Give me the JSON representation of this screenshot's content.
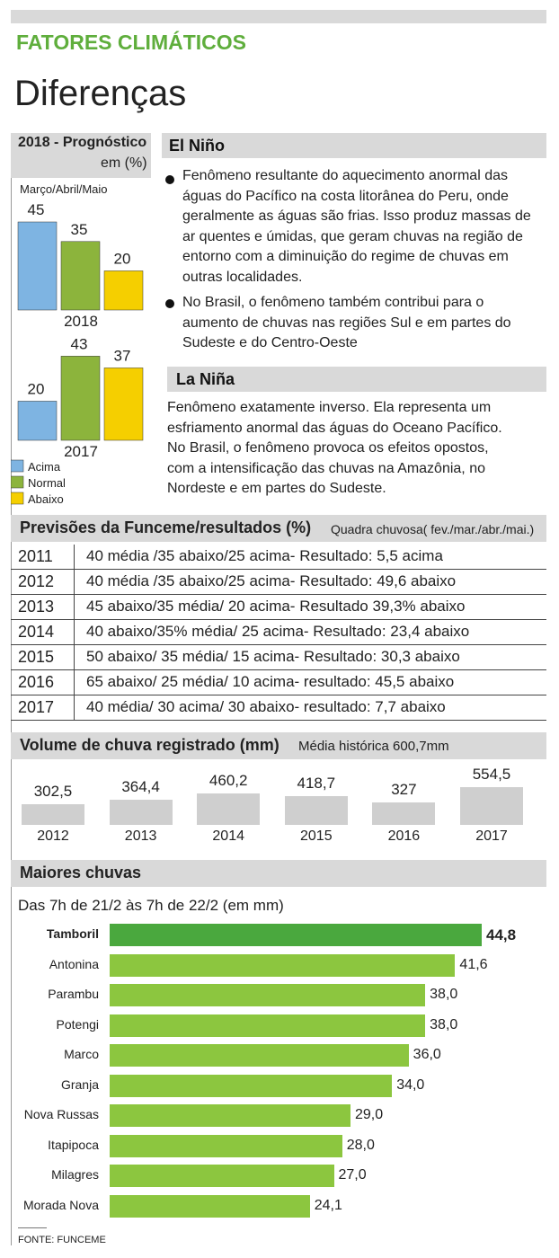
{
  "header": {
    "kicker": "FATORES CLIMÁTICOS",
    "title": "Diferenças"
  },
  "prognostico": {
    "title": "2018 - Prognóstico",
    "unit": "em (%)",
    "period": "Março/Abril/Maio"
  },
  "el_nino": {
    "title": "El Niño",
    "bullet1": [
      "Fenômeno resultante do aquecimento anormal das",
      "águas do Pacífico na costa litorânea do Peru, onde",
      "geralmente as águas são frias. Isso produz massas de",
      "ar quentes e úmidas, que geram chuvas na região de",
      "entorno com a diminuição do regime de chuvas em",
      "outras localidades."
    ],
    "bullet2": [
      "No Brasil, o fenômeno também contribui para o",
      "aumento de chuvas nas regiões Sul e em partes do",
      "Sudeste e do Centro-Oeste"
    ]
  },
  "la_nina": {
    "title": "La Niña",
    "lines": [
      "Fenômeno exatamente inverso. Ela representa um",
      "esfriamento anormal das águas do Oceano Pacífico.",
      "No Brasil, o fenômeno provoca os efeitos opostos,",
      "com a intensificação das chuvas na Amazônia, no",
      "Nordeste e em partes do Sudeste."
    ]
  },
  "previsoes": {
    "title": "Previsões da Funceme/resultados (%)",
    "subtitle": "Quadra chuvosa( fev./mar./abr./mai.)",
    "rows": [
      {
        "year": "2011",
        "text": "40 média /35  abaixo/25 acima- Resultado: 5,5 acima"
      },
      {
        "year": "2012",
        "text": "40 média /35  abaixo/25 acima- Resultado: 49,6 abaixo"
      },
      {
        "year": "2013",
        "text": "45 abaixo/35 média/ 20 acima- Resultado 39,3% abaixo"
      },
      {
        "year": "2014",
        "text": "40 abaixo/35% média/ 25 acima- Resultado: 23,4 abaixo"
      },
      {
        "year": "2015",
        "text": "50 abaixo/ 35 média/ 15 acima- Resultado: 30,3 abaixo"
      },
      {
        "year": "2016",
        "text": "65 abaixo/ 25 média/ 10 acima- resultado: 45,5 abaixo"
      },
      {
        "year": "2017",
        "text": "40 média/ 30 acima/ 30 abaixo- resultado: 7,7 abaixo"
      }
    ]
  },
  "volume": {
    "title": "Volume de chuva registrado (mm)",
    "subtitle": "Média histórica 600,7mm"
  },
  "maiores": {
    "title": "Maiores chuvas",
    "subtitle": "Das 7h de 21/2 às 7h de 22/2 (em mm)"
  },
  "source": "FONTE: FUNCEME",
  "colors": {
    "acima": "#7eb4e2",
    "normal": "#8cb43c",
    "abaixo": "#f5cf00",
    "rain_top": "#4aa83e",
    "rain": "#8cc63f",
    "volume_bar": "#cfcfcf",
    "header_bar": "#d9d9d9",
    "kicker": "#5fae3c"
  },
  "chart_data": [
    {
      "type": "bar",
      "title": "2018 - Prognóstico",
      "categories": [
        "2018",
        "2017"
      ],
      "legend": [
        "Acima",
        "Normal",
        "Abaixo"
      ],
      "series": [
        {
          "name": "Acima",
          "values": [
            45,
            20
          ]
        },
        {
          "name": "Normal",
          "values": [
            35,
            43
          ]
        },
        {
          "name": "Abaixo",
          "values": [
            20,
            37
          ]
        }
      ],
      "ylim": [
        0,
        45
      ]
    },
    {
      "type": "bar",
      "title": "Volume de chuva registrado (mm)",
      "categories": [
        "2012",
        "2013",
        "2014",
        "2015",
        "2016",
        "2017"
      ],
      "values": [
        302.5,
        364.4,
        460.2,
        418.7,
        327,
        554.5
      ],
      "labels": [
        "302,5",
        "364,4",
        "460,2",
        "418,7",
        "327",
        "554,5"
      ]
    },
    {
      "type": "bar",
      "title": "Maiores chuvas",
      "categories": [
        "Tamboril",
        "Antonina",
        "Parambu",
        "Potengi",
        "Marco",
        "Granja",
        "Nova Russas",
        "Itapipoca",
        "Milagres",
        "Morada Nova"
      ],
      "values": [
        44.8,
        41.6,
        38.0,
        38.0,
        36.0,
        34.0,
        29.0,
        28.0,
        27.0,
        24.1
      ],
      "labels": [
        "44,8",
        "41,6",
        "38,0",
        "38,0",
        "36,0",
        "34,0",
        "29,0",
        "28,0",
        "27,0",
        "24,1"
      ],
      "xlim": [
        0,
        44.8
      ]
    }
  ]
}
